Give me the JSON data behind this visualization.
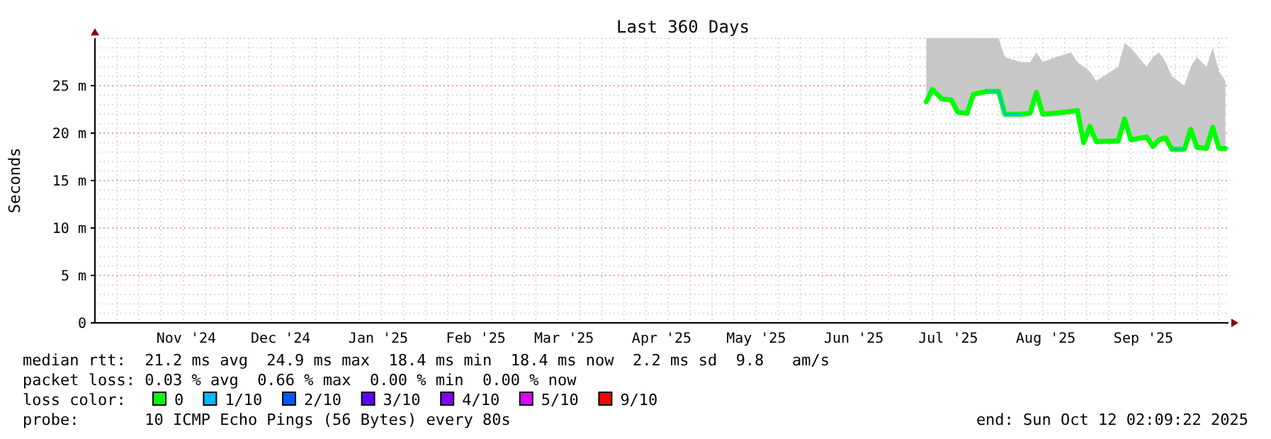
{
  "chart_data": {
    "type": "line",
    "title": "Last 360 Days",
    "ylabel": "Seconds",
    "legend_title": "loss color:",
    "legend": "bottom",
    "marker": "none",
    "line_style": "solid",
    "grid": true,
    "x": [
      "2025-07-08",
      "2025-07-10",
      "2025-07-13",
      "2025-07-16",
      "2025-07-18",
      "2025-07-21",
      "2025-07-23",
      "2025-07-27",
      "2025-07-31",
      "2025-08-02",
      "2025-08-07",
      "2025-08-10",
      "2025-08-12",
      "2025-08-14",
      "2025-08-18",
      "2025-08-23",
      "2025-08-25",
      "2025-08-27",
      "2025-08-29",
      "2025-08-31",
      "2025-09-07",
      "2025-09-09",
      "2025-09-11",
      "2025-09-16",
      "2025-09-18",
      "2025-09-20",
      "2025-09-22",
      "2025-09-24",
      "2025-09-28",
      "2025-09-30",
      "2025-10-02",
      "2025-10-05",
      "2025-10-07",
      "2025-10-09",
      "2025-10-11"
    ],
    "series": [
      {
        "name": "0",
        "color": "#00ff00",
        "values": [
          23.3,
          24.6,
          23.6,
          23.5,
          22.2,
          22.1,
          24.1,
          24.4,
          24.4,
          22,
          22,
          22.1,
          24.3,
          22,
          22.1,
          22.3,
          22.4,
          19,
          20.7,
          19.1,
          19.2,
          21.5,
          19.3,
          19.6,
          18.6,
          19.3,
          19.5,
          18.3,
          18.3,
          20.4,
          18.5,
          18.4,
          20.6,
          18.4,
          18.4
        ],
        "lower": [
          23,
          24.3,
          23.3,
          23.2,
          21.9,
          21.8,
          23.8,
          24.1,
          24.1,
          21.7,
          21.7,
          21.8,
          24,
          21.7,
          21.8,
          22,
          22.1,
          18.7,
          20.4,
          18.8,
          18.9,
          21.2,
          19,
          19.3,
          18.3,
          19,
          19.2,
          18,
          18,
          20.1,
          18.2,
          18.1,
          20.3,
          18.1,
          18.1
        ],
        "upper": [
          30,
          30,
          30,
          30,
          30,
          30,
          30,
          30,
          30,
          28,
          27.5,
          27.5,
          28.5,
          27.5,
          28,
          28.5,
          27.5,
          27,
          26.5,
          25.5,
          27,
          29.5,
          29,
          27,
          28,
          28.5,
          27.5,
          26,
          25,
          27,
          28,
          27,
          29,
          26.5,
          25.5
        ]
      },
      {
        "name": "1/10",
        "color": "#00b8ff",
        "values": [
          null,
          null,
          null,
          null,
          null,
          null,
          null,
          24.4,
          24.4,
          22,
          22,
          null,
          null,
          null,
          null,
          null,
          null,
          null,
          null,
          null,
          null,
          null,
          null,
          null,
          null,
          null,
          null,
          18.3,
          18.3,
          null,
          null,
          null,
          null,
          null,
          null
        ]
      },
      {
        "name": "2/10",
        "color": "#0059ff",
        "values": [
          null,
          null,
          null,
          null,
          null,
          null,
          null,
          null,
          null,
          null,
          null,
          null,
          null,
          null,
          null,
          null,
          null,
          null,
          null,
          null,
          null,
          null,
          null,
          null,
          null,
          null,
          null,
          null,
          null,
          null,
          null,
          null,
          null,
          null,
          null
        ]
      },
      {
        "name": "3/10",
        "color": "#5e00ff",
        "values": [
          null,
          null,
          null,
          null,
          null,
          null,
          null,
          null,
          null,
          null,
          null,
          null,
          null,
          null,
          null,
          null,
          null,
          null,
          null,
          null,
          null,
          null,
          null,
          null,
          null,
          null,
          null,
          null,
          null,
          null,
          null,
          null,
          null,
          null,
          null
        ]
      },
      {
        "name": "4/10",
        "color": "#7e00ff",
        "values": [
          null,
          null,
          null,
          null,
          null,
          null,
          null,
          null,
          null,
          null,
          null,
          null,
          null,
          null,
          null,
          null,
          null,
          null,
          null,
          null,
          null,
          null,
          null,
          null,
          null,
          null,
          null,
          null,
          null,
          null,
          null,
          null,
          null,
          null,
          null
        ]
      },
      {
        "name": "5/10",
        "color": "#dd00ff",
        "values": [
          null,
          null,
          null,
          null,
          null,
          null,
          null,
          null,
          null,
          null,
          null,
          null,
          null,
          null,
          null,
          null,
          null,
          null,
          null,
          null,
          null,
          null,
          null,
          null,
          null,
          null,
          null,
          null,
          null,
          null,
          null,
          null,
          null,
          null,
          null
        ]
      },
      {
        "name": "9/10",
        "color": "#ff0000",
        "values": [
          null,
          null,
          null,
          null,
          null,
          null,
          null,
          null,
          null,
          null,
          null,
          null,
          null,
          null,
          null,
          null,
          null,
          null,
          null,
          null,
          null,
          null,
          null,
          null,
          null,
          null,
          null,
          null,
          null,
          null,
          null,
          null,
          null,
          null,
          null
        ]
      }
    ],
    "xlim": [
      "2024-10-17",
      "2025-10-12"
    ],
    "xticks": [
      {
        "value": "2024-11-15",
        "label": "Nov '24"
      },
      {
        "value": "2024-12-15",
        "label": "Dec '24"
      },
      {
        "value": "2025-01-15",
        "label": "Jan '25"
      },
      {
        "value": "2025-02-15",
        "label": "Feb '25"
      },
      {
        "value": "2025-03-15",
        "label": "Mar '25"
      },
      {
        "value": "2025-04-15",
        "label": "Apr '25"
      },
      {
        "value": "2025-05-15",
        "label": "May '25"
      },
      {
        "value": "2025-06-15",
        "label": "Jun '25"
      },
      {
        "value": "2025-07-15",
        "label": "Jul '25"
      },
      {
        "value": "2025-08-15",
        "label": "Aug '25"
      },
      {
        "value": "2025-09-15",
        "label": "Sep '25"
      }
    ],
    "ylim": [
      0,
      30
    ],
    "yticks": [
      0,
      {
        "value": 5,
        "label": "5 m"
      },
      {
        "value": 10,
        "label": "10 m"
      },
      {
        "value": 15,
        "label": "15 m"
      },
      {
        "value": 20,
        "label": "20 m"
      },
      {
        "value": 25,
        "label": "25 m"
      }
    ],
    "annotations": [
      "median rtt:  21.2 ms avg  24.9 ms max  18.4 ms min  18.4 ms now  2.2 ms sd  9.8   am/s",
      "packet loss: 0.03 % avg  0.66 % max  0.00 % min  0.00 % now",
      "probe:       10 ICMP Echo Pings (56 Bytes) every 80s",
      "end: Sun Oct 12 02:09:22 2025"
    ]
  }
}
